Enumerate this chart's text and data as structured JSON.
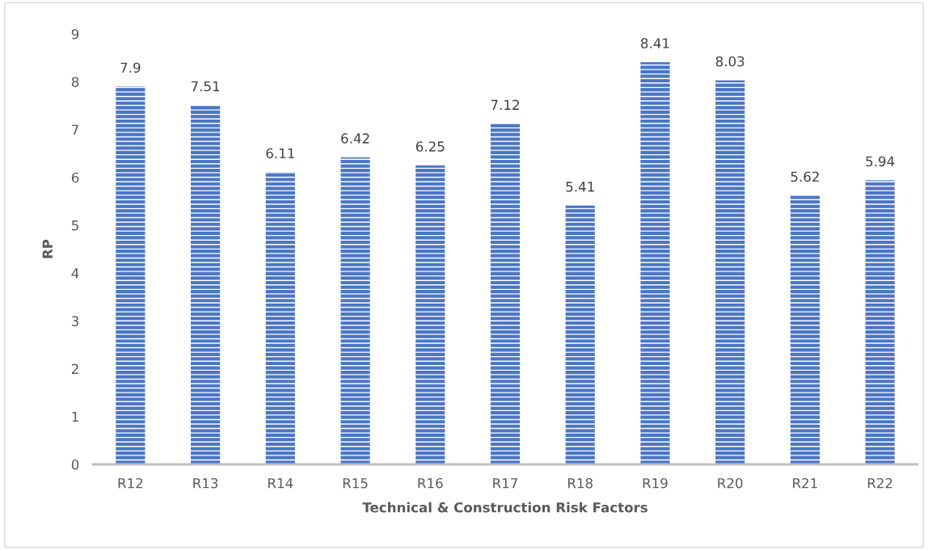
{
  "chart_data": {
    "type": "bar",
    "xlabel": "Technical & Construction Risk Factors",
    "ylabel": "RP",
    "categories": [
      "R12",
      "R13",
      "R14",
      "R15",
      "R16",
      "R17",
      "R18",
      "R19",
      "R20",
      "R21",
      "R22"
    ],
    "values": [
      7.9,
      7.51,
      6.11,
      6.42,
      6.25,
      7.12,
      5.41,
      8.41,
      8.03,
      5.62,
      5.94
    ],
    "color": "#4a76c6",
    "ylim": [
      0,
      9
    ],
    "yticks": [
      0,
      1,
      2,
      3,
      4,
      5,
      6,
      7,
      8,
      9
    ],
    "data_labels": true,
    "grid": false,
    "legend": false
  }
}
